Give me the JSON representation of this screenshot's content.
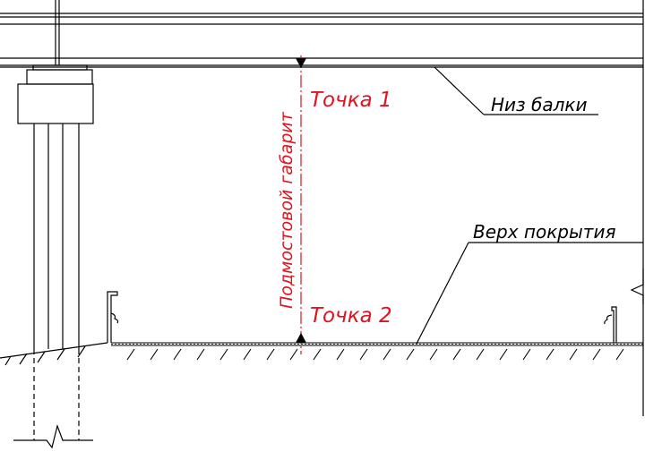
{
  "labels": {
    "beam_bottom": "Низ балки",
    "pavement_top": "Верх покрытия",
    "point1": "Точка  1",
    "point2": "Точка  2",
    "clearance": "Подмостовой габарит"
  },
  "colors": {
    "line": "#000000",
    "dimension": "#e0141e",
    "background": "#ffffff"
  }
}
